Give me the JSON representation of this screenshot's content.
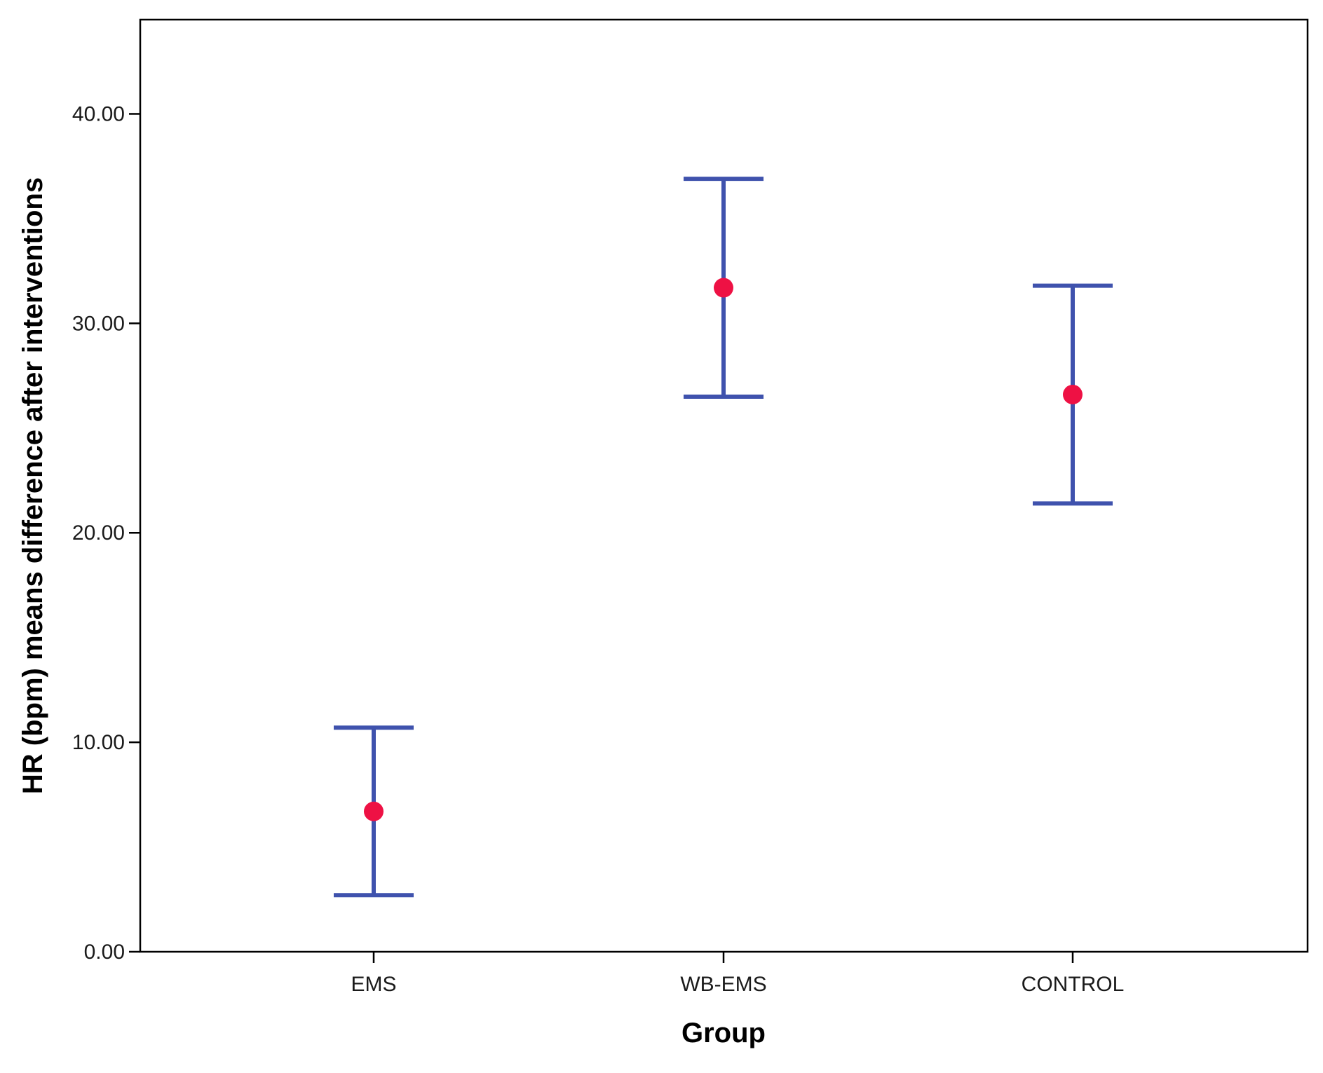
{
  "chart_data": {
    "type": "scatter",
    "subtype": "error-bar",
    "title": "",
    "xlabel": "Group",
    "ylabel": "HR (bpm) means difference after interventions",
    "categories": [
      "EMS",
      "WB-EMS",
      "CONTROL"
    ],
    "ylim": [
      0,
      44.5
    ],
    "yticks": [
      0,
      10,
      20,
      30,
      40
    ],
    "ytick_labels": [
      "0.00",
      "10.00",
      "20.00",
      "30.00",
      "40.00"
    ],
    "series": [
      {
        "means": [
          6.7,
          31.7,
          26.6
        ],
        "lower": [
          2.7,
          26.5,
          21.4
        ],
        "upper": [
          10.7,
          36.9,
          31.8
        ]
      }
    ],
    "grid": false,
    "legend": "none",
    "colors": {
      "mean_marker": "#ee1144",
      "error_bar": "#3f52ad",
      "axis": "#000000",
      "text": "#1a1a1a"
    }
  }
}
